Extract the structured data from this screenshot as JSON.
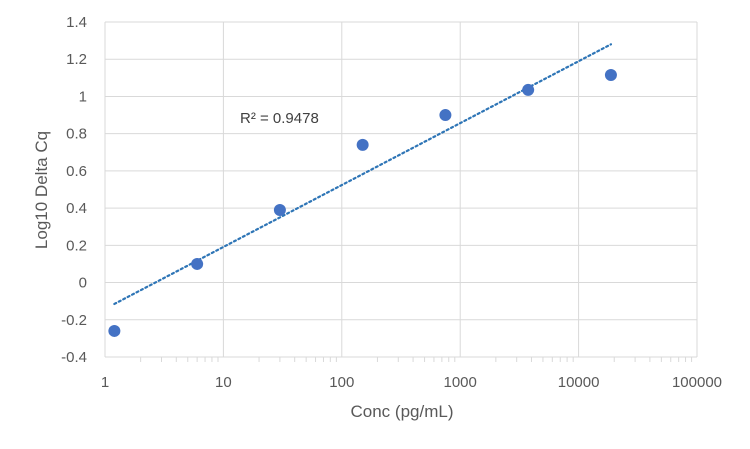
{
  "chart_data": {
    "type": "scatter",
    "xlabel": "Conc (pg/mL)",
    "ylabel": "Log10 Delta Cq",
    "x_scale": "log",
    "xlim": [
      1,
      100000
    ],
    "ylim": [
      -0.4,
      1.4
    ],
    "x_ticks": [
      1,
      10,
      100,
      1000,
      10000,
      100000
    ],
    "x_tick_labels": [
      "1",
      "10",
      "100",
      "1000",
      "10000",
      "100000"
    ],
    "y_ticks": [
      -0.4,
      -0.2,
      0,
      0.2,
      0.4,
      0.6,
      0.8,
      1,
      1.2,
      1.4
    ],
    "y_tick_labels": [
      "-0.4",
      "-0.2",
      "0",
      "0.2",
      "0.4",
      "0.6",
      "0.8",
      "1",
      "1.2",
      "1.4"
    ],
    "grid": true,
    "points": [
      {
        "x": 1.2,
        "y": -0.26
      },
      {
        "x": 6,
        "y": 0.1
      },
      {
        "x": 30,
        "y": 0.39
      },
      {
        "x": 150,
        "y": 0.74
      },
      {
        "x": 750,
        "y": 0.9
      },
      {
        "x": 3750,
        "y": 1.035
      },
      {
        "x": 18750,
        "y": 1.115
      }
    ],
    "trendline": {
      "type": "log-linear",
      "start": {
        "x": 1.2,
        "y": -0.115
      },
      "end": {
        "x": 18750,
        "y": 1.28
      },
      "r_squared_label": "R² = 0.9478"
    },
    "colors": {
      "marker": "#4472C4",
      "trendline": "#2E75B6",
      "grid": "#D9D9D9",
      "text": "#595959"
    }
  }
}
